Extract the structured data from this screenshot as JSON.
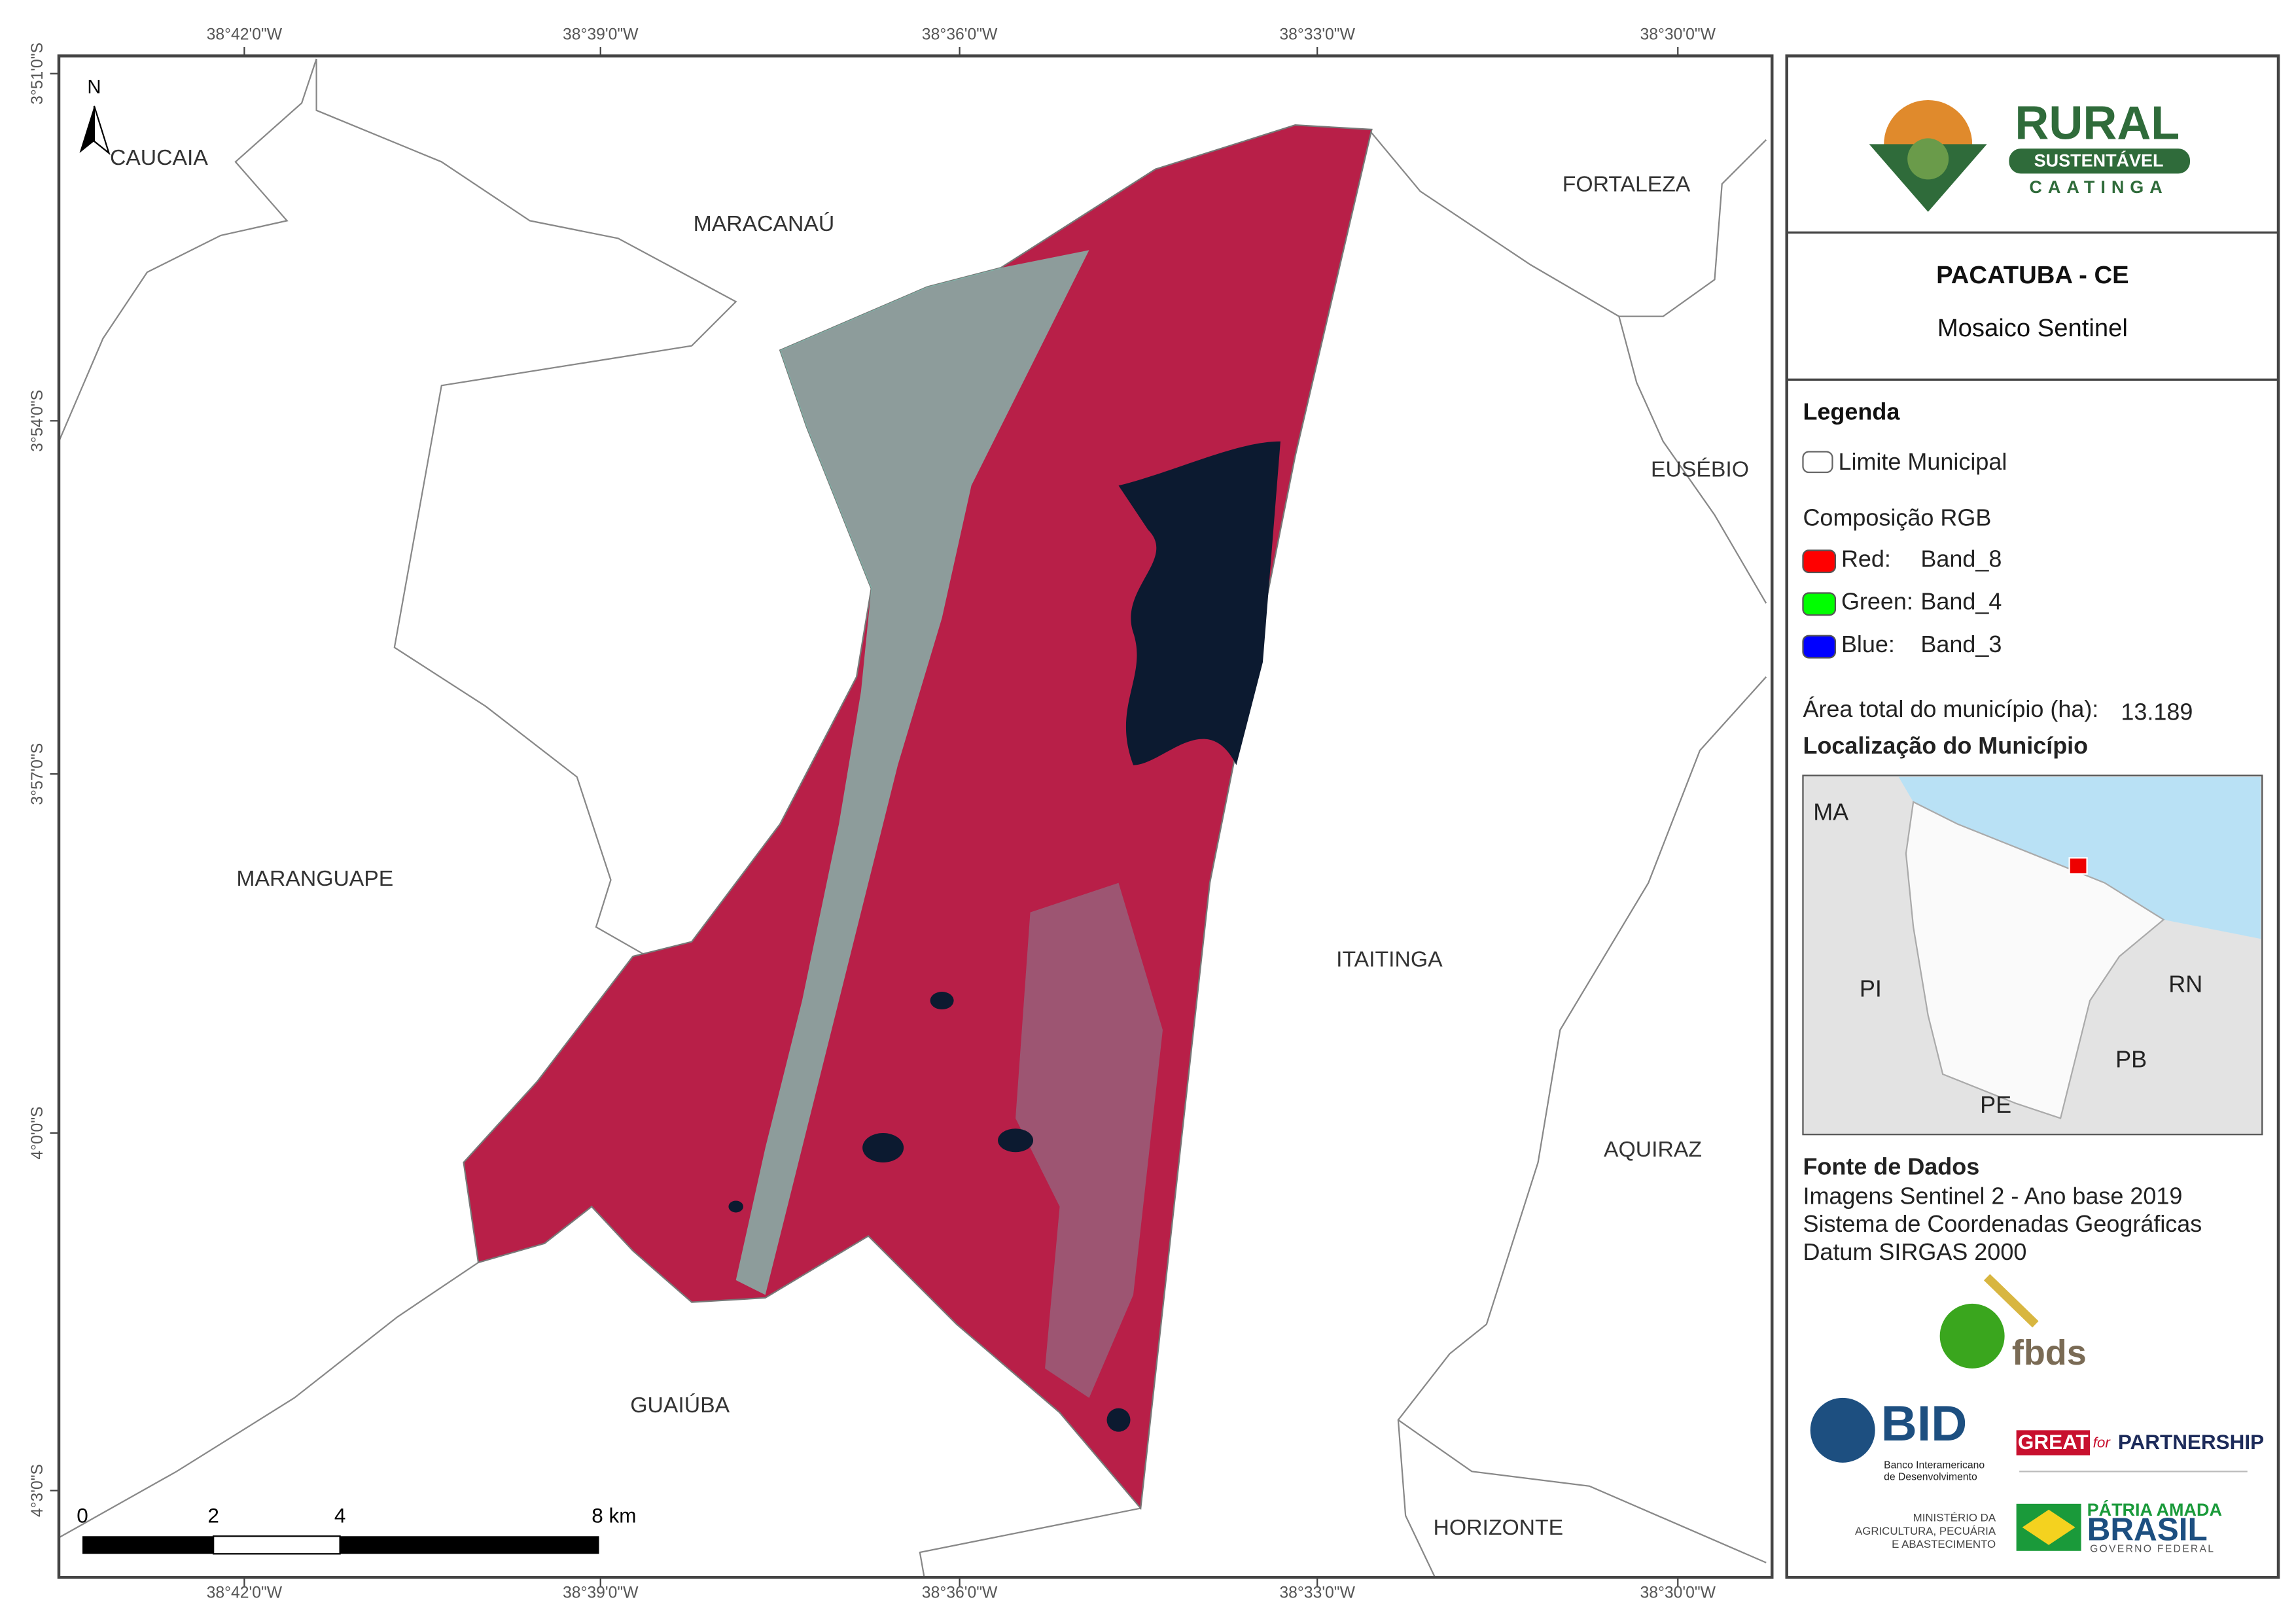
{
  "map": {
    "coordinates_top": [
      "38°42'0\"W",
      "38°39'0\"W",
      "38°36'0\"W",
      "38°33'0\"W",
      "38°30'0\"W"
    ],
    "coordinates_left": [
      "3°51'0\"S",
      "3°54'0\"S",
      "3°57'0\"S",
      "4°0'0\"S",
      "4°3'0\"S"
    ],
    "north": "N",
    "municipalities": [
      "CAUCAIA",
      "MARACANAÚ",
      "FORTALEZA",
      "EUSÉBIO",
      "MARANGUAPE",
      "ITAITINGA",
      "AQUIRAZ",
      "GUAIÚBA",
      "HORIZONTE"
    ],
    "scale_bar": [
      "0",
      "2",
      "4",
      "8 km"
    ]
  },
  "panel": {
    "logo": {
      "line1": "RURAL",
      "line2": "SUSTENTÁVEL",
      "line3": "CAATINGA"
    },
    "title": "PACATUBA - CE",
    "subtitle": "Mosaico Sentinel",
    "legend": {
      "title": "Legenda",
      "boundary": "Limite Municipal",
      "composition": "Composição RGB",
      "bands": [
        {
          "channel": "Red:",
          "band": "Band_8",
          "color": "#ff0000"
        },
        {
          "channel": "Green:",
          "band": "Band_4",
          "color": "#00ff00"
        },
        {
          "channel": "Blue:",
          "band": "Band_3",
          "color": "#0000ff"
        }
      ]
    },
    "area_label": "Área total do município (ha):",
    "area_value": "13.189",
    "location_title": "Localização do Município",
    "inset_labels": [
      "MA",
      "PI",
      "RN",
      "PB",
      "PE"
    ],
    "sources_title": "Fonte de Dados",
    "sources": [
      "Imagens Sentinel 2 - Ano base 2019",
      "Sistema de Coordenadas Geográficas",
      "Datum SIRGAS 2000"
    ],
    "logos": {
      "fbds": "fbds",
      "bid": "BID",
      "bid_name": [
        "Banco Interamericano",
        "de Desenvolvimento"
      ],
      "great": "GREAT",
      "great_for": "for",
      "great_partnership": "PARTNERSHIP",
      "ministry": [
        "MINISTÉRIO DA",
        "AGRICULTURA, PECUÁRIA",
        "E ABASTECIMENTO"
      ],
      "brasil_top": "PÁTRIA AMADA",
      "brasil": "BRASIL",
      "brasil_bottom": "GOVERNO FEDERAL"
    }
  }
}
